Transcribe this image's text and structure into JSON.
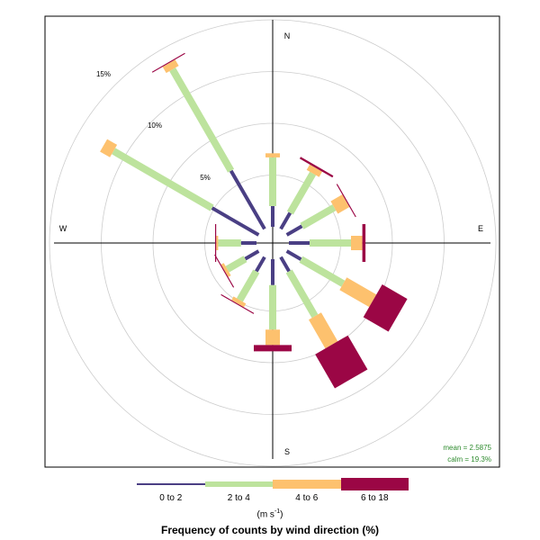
{
  "chart_data": {
    "type": "wind-rose",
    "title": "Frequency of counts by wind direction (%)",
    "units_label": "(m s",
    "units_superscript": "-1",
    "units_close": ")",
    "directions": [
      0,
      30,
      60,
      90,
      120,
      150,
      180,
      210,
      240,
      270,
      300,
      330
    ],
    "compass_labels": {
      "N": "N",
      "E": "E",
      "S": "S",
      "W": "W"
    },
    "radial_ticks": [
      5,
      10,
      15
    ],
    "radial_tick_labels": [
      "5%",
      "10%",
      "15%"
    ],
    "rmax": 18,
    "series": [
      {
        "name": "0 to 2",
        "color": "#4a3f84",
        "values": [
          2.0,
          1.8,
          1.7,
          2.0,
          1.6,
          1.6,
          2.5,
          1.6,
          1.5,
          1.5,
          5.2,
          6.5
        ]
      },
      {
        "name": "2 to 4",
        "color": "#bde39d",
        "values": [
          4.7,
          4.4,
          3.6,
          4.0,
          4.7,
          5.0,
          4.3,
          3.2,
          2.0,
          2.2,
          11.0,
          11.3
        ]
      },
      {
        "name": "4 to 6",
        "color": "#fdc16e",
        "values": [
          0.4,
          0.6,
          1.3,
          1.1,
          3.3,
          3.2,
          1.5,
          0.4,
          0.3,
          0.2,
          1.1,
          0.7
        ]
      },
      {
        "name": "6 to 18",
        "color": "#9b0645",
        "values": [
          0.0,
          0.2,
          0.1,
          0.3,
          2.8,
          3.8,
          0.6,
          0.1,
          0.1,
          0.1,
          0.0,
          0.1
        ]
      }
    ],
    "stats": {
      "mean": "mean = 2.5875",
      "calm": "calm = 19.3%"
    },
    "stats_color": "#2e8b2e",
    "grid": true,
    "legend_position": "bottom"
  }
}
